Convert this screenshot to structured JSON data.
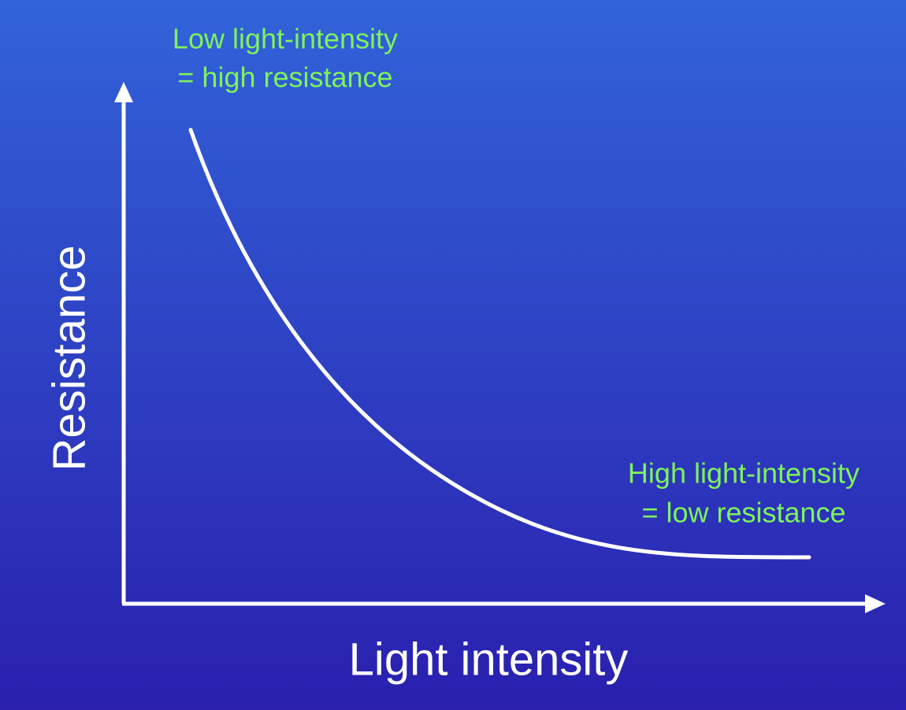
{
  "axes": {
    "x_label": "Light intensity",
    "y_label": "Resistance"
  },
  "annotations": [
    {
      "lines": [
        "Low light-intensity",
        "= high resistance"
      ]
    },
    {
      "lines": [
        "High light-intensity",
        "= low resistance"
      ]
    }
  ]
}
